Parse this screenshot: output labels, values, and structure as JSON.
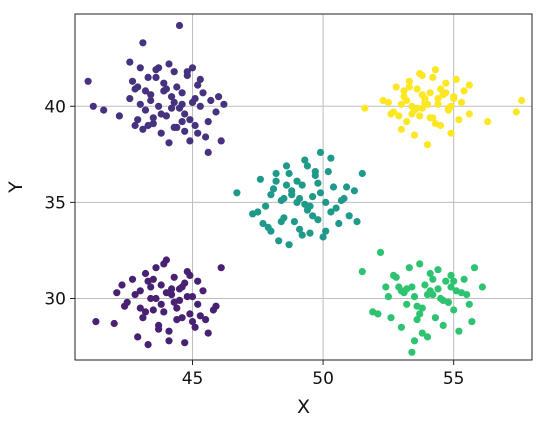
{
  "chart_data": {
    "type": "scatter",
    "title": "",
    "xlabel": "X",
    "ylabel": "Y",
    "xlim": [
      40.5,
      58.0
    ],
    "ylim": [
      26.8,
      44.8
    ],
    "xticks": [
      45,
      50,
      55
    ],
    "yticks": [
      30,
      35,
      40
    ],
    "x_tick_labels": [
      "45",
      "50",
      "55"
    ],
    "y_tick_labels": [
      "30",
      "35",
      "40"
    ],
    "grid": true,
    "legend": "none",
    "series": [
      {
        "color": "#46327e",
        "x": [
          41.2,
          41.0,
          42.2,
          42.6,
          42.8,
          42.9,
          43.0,
          43.1,
          43.2,
          43.3,
          43.4,
          43.5,
          43.6,
          43.7,
          43.8,
          43.9,
          44.0,
          44.1,
          44.2,
          44.3,
          44.4,
          44.5,
          44.6,
          44.7,
          44.8,
          44.9,
          45.0,
          45.1,
          45.2,
          45.3,
          45.5,
          45.6,
          46.2,
          43.1,
          42.6,
          43.4,
          43.8,
          44.3,
          44.9,
          44.5,
          45.6,
          42.8,
          43.7,
          44.4,
          45.3,
          46.0,
          43.5,
          44.0,
          44.7,
          45.1,
          43.9,
          45.0,
          44.2,
          45.9,
          46.1,
          44.6,
          43.6,
          42.9,
          41.6,
          43.0,
          44.1,
          45.4,
          44.3,
          43.3,
          44.8,
          45.7,
          42.7,
          43.2,
          44.6,
          45.2
        ],
        "y": [
          40.0,
          41.3,
          39.5,
          40.4,
          39.0,
          41.0,
          40.1,
          38.8,
          39.8,
          41.5,
          40.3,
          39.1,
          41.9,
          40.0,
          38.6,
          40.8,
          39.5,
          42.2,
          40.5,
          38.9,
          41.0,
          39.9,
          40.7,
          38.7,
          41.6,
          39.3,
          40.2,
          39.0,
          41.1,
          40.0,
          38.4,
          37.6,
          40.1,
          43.3,
          42.3,
          40.6,
          39.6,
          41.8,
          38.2,
          44.2,
          39.2,
          40.9,
          42.0,
          38.9,
          41.4,
          40.5,
          39.4,
          40.9,
          39.6,
          40.4,
          41.2,
          42.0,
          39.9,
          39.7,
          38.2,
          40.1,
          41.5,
          39.3,
          39.8,
          42.0,
          38.1,
          40.7,
          40.2,
          39.0,
          41.8,
          40.3,
          41.3,
          40.8,
          39.2,
          38.6
        ]
      },
      {
        "color": "#482173",
        "x": [
          41.3,
          42.1,
          42.4,
          42.7,
          42.9,
          43.0,
          43.1,
          43.2,
          43.3,
          43.4,
          43.5,
          43.6,
          43.7,
          43.8,
          43.9,
          44.0,
          44.1,
          44.2,
          44.3,
          44.4,
          44.5,
          44.6,
          44.7,
          44.8,
          44.9,
          45.0,
          45.1,
          45.2,
          45.4,
          45.6,
          45.9,
          46.1,
          43.3,
          43.9,
          44.4,
          42.8,
          44.1,
          44.7,
          43.6,
          45.0,
          45.3,
          42.5,
          43.8,
          44.2,
          44.9,
          43.4,
          44.6,
          43.0,
          45.5,
          44.0,
          43.5,
          44.3,
          45.2,
          42.3,
          43.7,
          44.5,
          43.2,
          44.8,
          45.8,
          42.0
        ],
        "y": [
          28.8,
          30.3,
          29.6,
          31.0,
          28.0,
          30.4,
          29.0,
          31.3,
          27.6,
          30.0,
          29.4,
          31.6,
          28.6,
          30.7,
          29.3,
          32.0,
          27.8,
          30.2,
          31.1,
          28.9,
          29.9,
          30.6,
          27.7,
          31.4,
          29.2,
          30.1,
          28.5,
          29.7,
          30.4,
          28.2,
          29.6,
          31.6,
          30.9,
          31.8,
          29.5,
          30.2,
          28.3,
          30.8,
          30.0,
          28.8,
          29.1,
          29.8,
          29.7,
          30.5,
          31.2,
          30.6,
          29.0,
          29.5,
          28.9,
          30.3,
          31.0,
          29.8,
          30.9,
          30.7,
          28.4,
          30.5,
          29.3,
          30.1,
          29.4,
          28.7
        ]
      },
      {
        "color": "#1f9a8a",
        "x": [
          46.7,
          47.3,
          47.6,
          47.8,
          48.0,
          48.1,
          48.2,
          48.3,
          48.4,
          48.5,
          48.6,
          48.7,
          48.8,
          48.9,
          49.0,
          49.1,
          49.2,
          49.3,
          49.4,
          49.5,
          49.6,
          49.7,
          49.8,
          49.9,
          50.0,
          50.1,
          50.2,
          50.3,
          50.4,
          50.6,
          50.8,
          51.0,
          51.2,
          51.5,
          47.9,
          48.6,
          49.3,
          49.8,
          50.5,
          48.2,
          49.0,
          50.1,
          49.6,
          48.8,
          49.4,
          50.7,
          47.5,
          48.4,
          49.2,
          49.9,
          50.3,
          48.0,
          49.5,
          51.3,
          48.7,
          49.1,
          50.9,
          47.7,
          49.7,
          48.5
        ],
        "y": [
          35.5,
          34.4,
          36.2,
          34.8,
          33.5,
          35.7,
          36.5,
          33.0,
          35.1,
          34.2,
          36.9,
          32.8,
          35.4,
          34.0,
          36.1,
          33.6,
          35.9,
          37.2,
          34.6,
          33.4,
          35.3,
          36.4,
          34.1,
          37.6,
          33.2,
          35.0,
          36.6,
          34.5,
          35.8,
          33.9,
          35.2,
          34.3,
          35.6,
          36.5,
          33.7,
          35.9,
          34.9,
          36.0,
          34.7,
          36.1,
          35.0,
          33.5,
          34.3,
          35.6,
          36.9,
          35.1,
          34.5,
          34.0,
          33.3,
          35.5,
          37.3,
          35.4,
          34.8,
          34.0,
          36.5,
          35.2,
          35.8,
          33.9,
          36.6,
          35.2
        ]
      },
      {
        "color": "#2dc371",
        "x": [
          51.5,
          51.9,
          52.2,
          52.4,
          52.6,
          52.8,
          53.0,
          53.1,
          53.2,
          53.3,
          53.4,
          53.5,
          53.6,
          53.7,
          53.8,
          53.9,
          54.0,
          54.1,
          54.2,
          54.3,
          54.4,
          54.5,
          54.6,
          54.7,
          54.8,
          54.9,
          55.0,
          55.1,
          55.2,
          55.4,
          55.6,
          55.8,
          56.1,
          52.1,
          53.4,
          54.0,
          54.8,
          53.0,
          55.3,
          53.7,
          54.4,
          52.9,
          55.0,
          53.5,
          54.2,
          55.7,
          52.5,
          53.8,
          54.6,
          53.2,
          55.5,
          54.1,
          53.6,
          52.7,
          54.9
        ],
        "y": [
          31.4,
          29.3,
          32.4,
          30.6,
          29.0,
          31.1,
          28.5,
          30.3,
          29.7,
          31.6,
          27.2,
          30.1,
          28.9,
          31.8,
          29.5,
          30.7,
          28.0,
          31.3,
          30.2,
          29.0,
          31.5,
          30.0,
          28.6,
          30.9,
          29.8,
          31.2,
          29.4,
          30.4,
          28.3,
          31.0,
          29.7,
          31.6,
          30.6,
          29.2,
          30.6,
          30.2,
          29.8,
          30.4,
          30.3,
          29.2,
          30.5,
          30.6,
          30.9,
          27.8,
          31.0,
          28.8,
          30.1,
          28.2,
          29.9,
          30.5,
          30.2,
          30.4,
          29.6,
          31.2,
          30.6
        ]
      },
      {
        "color": "#fde725",
        "x": [
          51.6,
          52.3,
          52.6,
          52.8,
          53.0,
          53.1,
          53.2,
          53.3,
          53.4,
          53.5,
          53.6,
          53.7,
          53.8,
          53.9,
          54.0,
          54.1,
          54.2,
          54.3,
          54.4,
          54.5,
          54.6,
          54.7,
          54.8,
          54.9,
          55.0,
          55.2,
          55.4,
          55.6,
          56.3,
          57.4,
          57.6,
          53.3,
          53.9,
          54.3,
          54.7,
          53.6,
          52.9,
          54.5,
          54.0,
          55.1,
          53.4,
          54.8,
          53.8,
          55.3,
          54.2,
          53.1,
          54.6,
          53.7,
          55.6,
          54.1,
          53.0,
          52.7,
          53.5,
          54.4,
          55.0,
          53.2,
          52.5,
          54.9,
          53.8
        ],
        "y": [
          39.9,
          40.3,
          39.6,
          41.0,
          38.8,
          40.5,
          39.2,
          41.3,
          40.0,
          38.5,
          40.9,
          39.5,
          41.6,
          40.2,
          38.0,
          40.7,
          39.4,
          41.9,
          40.1,
          39.0,
          40.6,
          41.2,
          39.8,
          38.6,
          40.4,
          39.3,
          40.8,
          41.1,
          39.2,
          39.7,
          40.3,
          41.0,
          40.4,
          39.1,
          40.7,
          39.9,
          39.5,
          40.9,
          40.1,
          41.4,
          39.6,
          39.9,
          40.6,
          40.2,
          41.5,
          40.8,
          40.6,
          41.7,
          39.6,
          39.4,
          40.1,
          39.7,
          39.8,
          40.4,
          40.5,
          40.3,
          40.2,
          40.0,
          39.9
        ]
      }
    ]
  }
}
